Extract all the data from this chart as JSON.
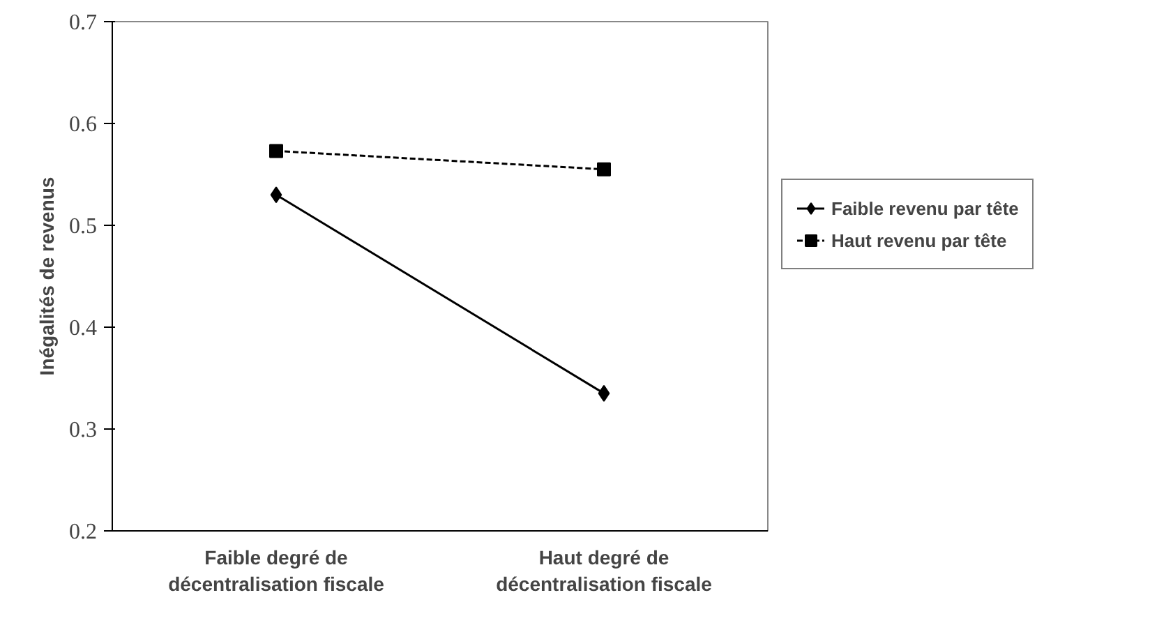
{
  "chart_data": {
    "type": "line",
    "ylabel": "Inégalités de revenus",
    "categories": [
      "Faible degré de décentralisation fiscale",
      "Haut degré de décentralisation fiscale"
    ],
    "series": [
      {
        "name": "Faible revenu par tête",
        "color": "#000000",
        "values": [
          0.53,
          0.335
        ],
        "marker": "diamond",
        "line_style": "solid"
      },
      {
        "name": "Haut revenu par tête",
        "color": "#000000",
        "values": [
          0.573,
          0.555
        ],
        "marker": "square",
        "line_style": "dashed"
      }
    ],
    "ylim": [
      0.2,
      0.7
    ],
    "yticks": [
      0.2,
      0.3,
      0.4,
      0.5,
      0.6,
      0.7
    ],
    "grid": false,
    "legend": "right"
  }
}
